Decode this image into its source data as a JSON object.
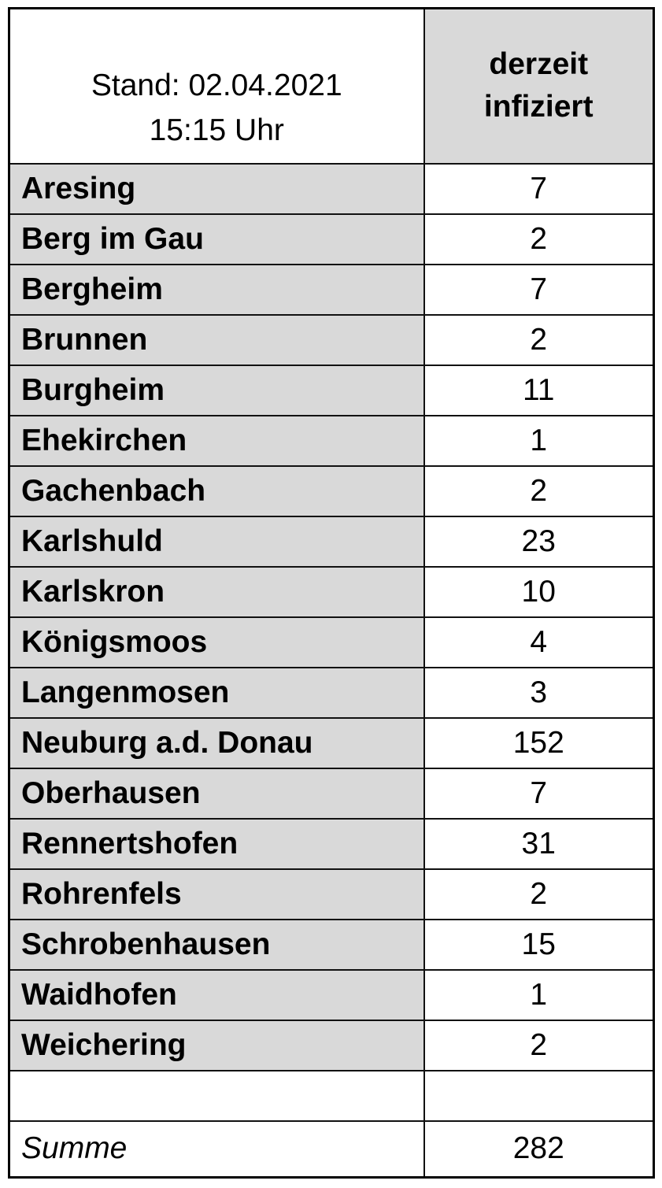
{
  "colors": {
    "cell_gray": "#d9d9d9",
    "border": "#000000",
    "background": "#ffffff"
  },
  "table": {
    "header": {
      "left_line1": "Stand: 02.04.2021",
      "left_line2": "15:15 Uhr",
      "right_line1": "derzeit",
      "right_line2": "infiziert"
    },
    "rows": [
      {
        "name": "Aresing",
        "value": "7"
      },
      {
        "name": "Berg im Gau",
        "value": "2"
      },
      {
        "name": "Bergheim",
        "value": "7"
      },
      {
        "name": "Brunnen",
        "value": "2"
      },
      {
        "name": "Burgheim",
        "value": "11"
      },
      {
        "name": "Ehekirchen",
        "value": "1"
      },
      {
        "name": "Gachenbach",
        "value": "2"
      },
      {
        "name": "Karlshuld",
        "value": "23"
      },
      {
        "name": "Karlskron",
        "value": "10"
      },
      {
        "name": "Königsmoos",
        "value": "4"
      },
      {
        "name": "Langenmosen",
        "value": "3"
      },
      {
        "name": "Neuburg a.d. Donau",
        "value": "152"
      },
      {
        "name": "Oberhausen",
        "value": "7"
      },
      {
        "name": "Rennertshofen",
        "value": "31"
      },
      {
        "name": "Rohrenfels",
        "value": "2"
      },
      {
        "name": "Schrobenhausen",
        "value": "15"
      },
      {
        "name": "Waidhofen",
        "value": "1"
      },
      {
        "name": "Weichering",
        "value": "2"
      }
    ],
    "empty_row": {
      "name": "",
      "value": ""
    },
    "footer": {
      "label": "Summe",
      "value": "282"
    }
  },
  "chart_data": {
    "type": "table",
    "title": "Stand: 02.04.2021 15:15 Uhr",
    "columns": [
      "Stand: 02.04.2021 15:15 Uhr",
      "derzeit infiziert"
    ],
    "rows": [
      [
        "Aresing",
        7
      ],
      [
        "Berg im Gau",
        2
      ],
      [
        "Bergheim",
        7
      ],
      [
        "Brunnen",
        2
      ],
      [
        "Burgheim",
        11
      ],
      [
        "Ehekirchen",
        1
      ],
      [
        "Gachenbach",
        2
      ],
      [
        "Karlshuld",
        23
      ],
      [
        "Karlskron",
        10
      ],
      [
        "Königsmoos",
        4
      ],
      [
        "Langenmosen",
        3
      ],
      [
        "Neuburg a.d. Donau",
        152
      ],
      [
        "Oberhausen",
        7
      ],
      [
        "Rennertshofen",
        31
      ],
      [
        "Rohrenfels",
        2
      ],
      [
        "Schrobenhausen",
        15
      ],
      [
        "Waidhofen",
        1
      ],
      [
        "Weichering",
        2
      ]
    ],
    "total_label": "Summe",
    "total": 282
  }
}
